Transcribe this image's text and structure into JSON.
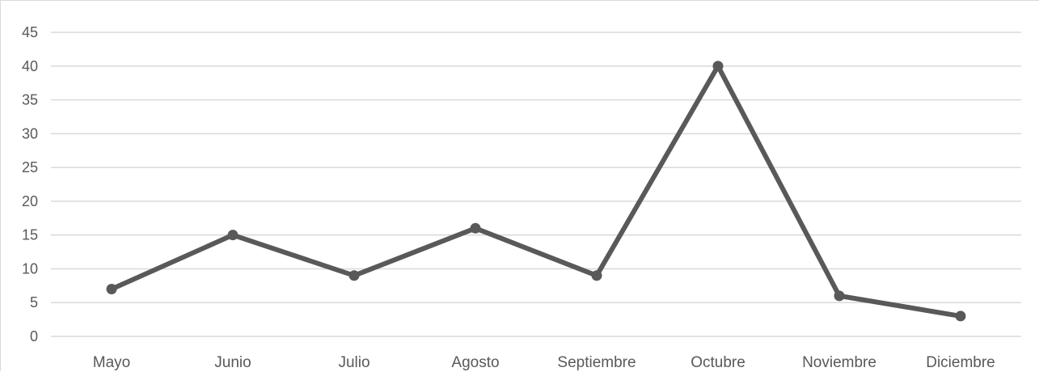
{
  "chart_data": {
    "type": "line",
    "categories": [
      "Mayo",
      "Junio",
      "Julio",
      "Agosto",
      "Septiembre",
      "Octubre",
      "Noviembre",
      "Diciembre"
    ],
    "series": [
      {
        "values": [
          7,
          15,
          9,
          16,
          9,
          40,
          6,
          3
        ]
      }
    ],
    "ylim": [
      0,
      45
    ],
    "yticks": [
      "0",
      "5",
      "10",
      "15",
      "20",
      "25",
      "30",
      "35",
      "40",
      "45"
    ],
    "grid": true,
    "legend": "none",
    "colors": {
      "line": "#595959",
      "grid": "#d9d9d9",
      "axis": "#d9d9d9",
      "text": "#595959"
    }
  }
}
